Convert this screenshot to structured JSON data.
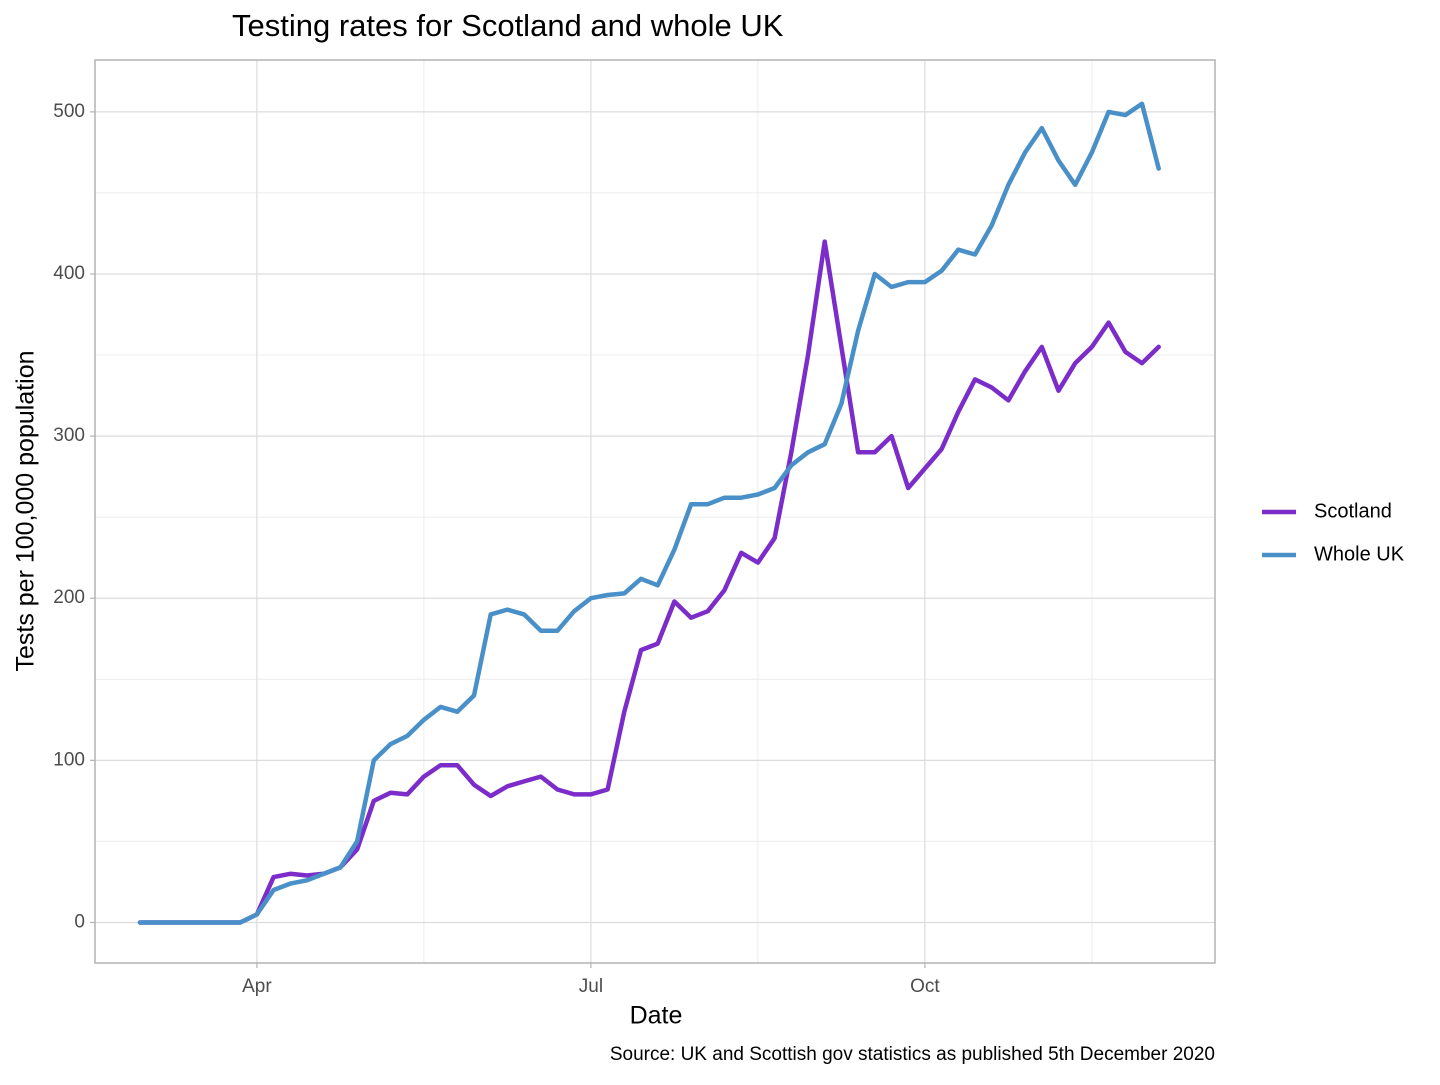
{
  "chart_data": {
    "type": "line",
    "title": "Testing rates for Scotland and whole UK",
    "x_label": "Date",
    "y_label": "Tests per 100,000 population",
    "caption": "Source: UK and Scottish gov statistics as published 5th December 2020",
    "categories": [
      null,
      null,
      null,
      null,
      null,
      null,
      null,
      "Apr",
      null,
      null,
      null,
      null,
      null,
      null,
      null,
      null,
      null,
      null,
      null,
      null,
      null,
      null,
      null,
      null,
      null,
      null,
      null,
      "Jul",
      null,
      null,
      null,
      null,
      null,
      null,
      null,
      null,
      null,
      null,
      null,
      null,
      null,
      null,
      null,
      null,
      null,
      null,
      null,
      "Oct",
      null,
      null,
      null,
      null,
      null,
      null,
      null,
      null,
      null,
      null,
      null,
      null,
      null,
      null
    ],
    "series": [
      {
        "name": "Scotland",
        "color": "#7b2cc9",
        "values": [
          0,
          0,
          0,
          0,
          0,
          0,
          0,
          5,
          28,
          30,
          29,
          30,
          34,
          45,
          75,
          80,
          79,
          90,
          97,
          97,
          85,
          78,
          84,
          87,
          90,
          82,
          79,
          79,
          82,
          130,
          168,
          172,
          198,
          188,
          192,
          205,
          228,
          222,
          237,
          290,
          350,
          420,
          355,
          290,
          290,
          300,
          268,
          280,
          292,
          315,
          335,
          330,
          322,
          340,
          355,
          328,
          345,
          355,
          370,
          352,
          345,
          355
        ]
      },
      {
        "name": "Whole UK",
        "color": "#4a90c8",
        "values": [
          0,
          0,
          0,
          0,
          0,
          0,
          0,
          5,
          20,
          24,
          26,
          30,
          34,
          50,
          100,
          110,
          115,
          125,
          133,
          130,
          140,
          190,
          193,
          190,
          180,
          180,
          192,
          200,
          202,
          203,
          212,
          208,
          230,
          258,
          258,
          262,
          262,
          264,
          268,
          282,
          290,
          295,
          320,
          365,
          400,
          392,
          395,
          395,
          402,
          415,
          412,
          430,
          455,
          475,
          490,
          470,
          455,
          475,
          500,
          498,
          505,
          465
        ]
      }
    ],
    "ylim": [
      -25,
      532
    ],
    "yticks": [
      0,
      100,
      200,
      300,
      400,
      500
    ],
    "grid": true,
    "legend": "right"
  }
}
